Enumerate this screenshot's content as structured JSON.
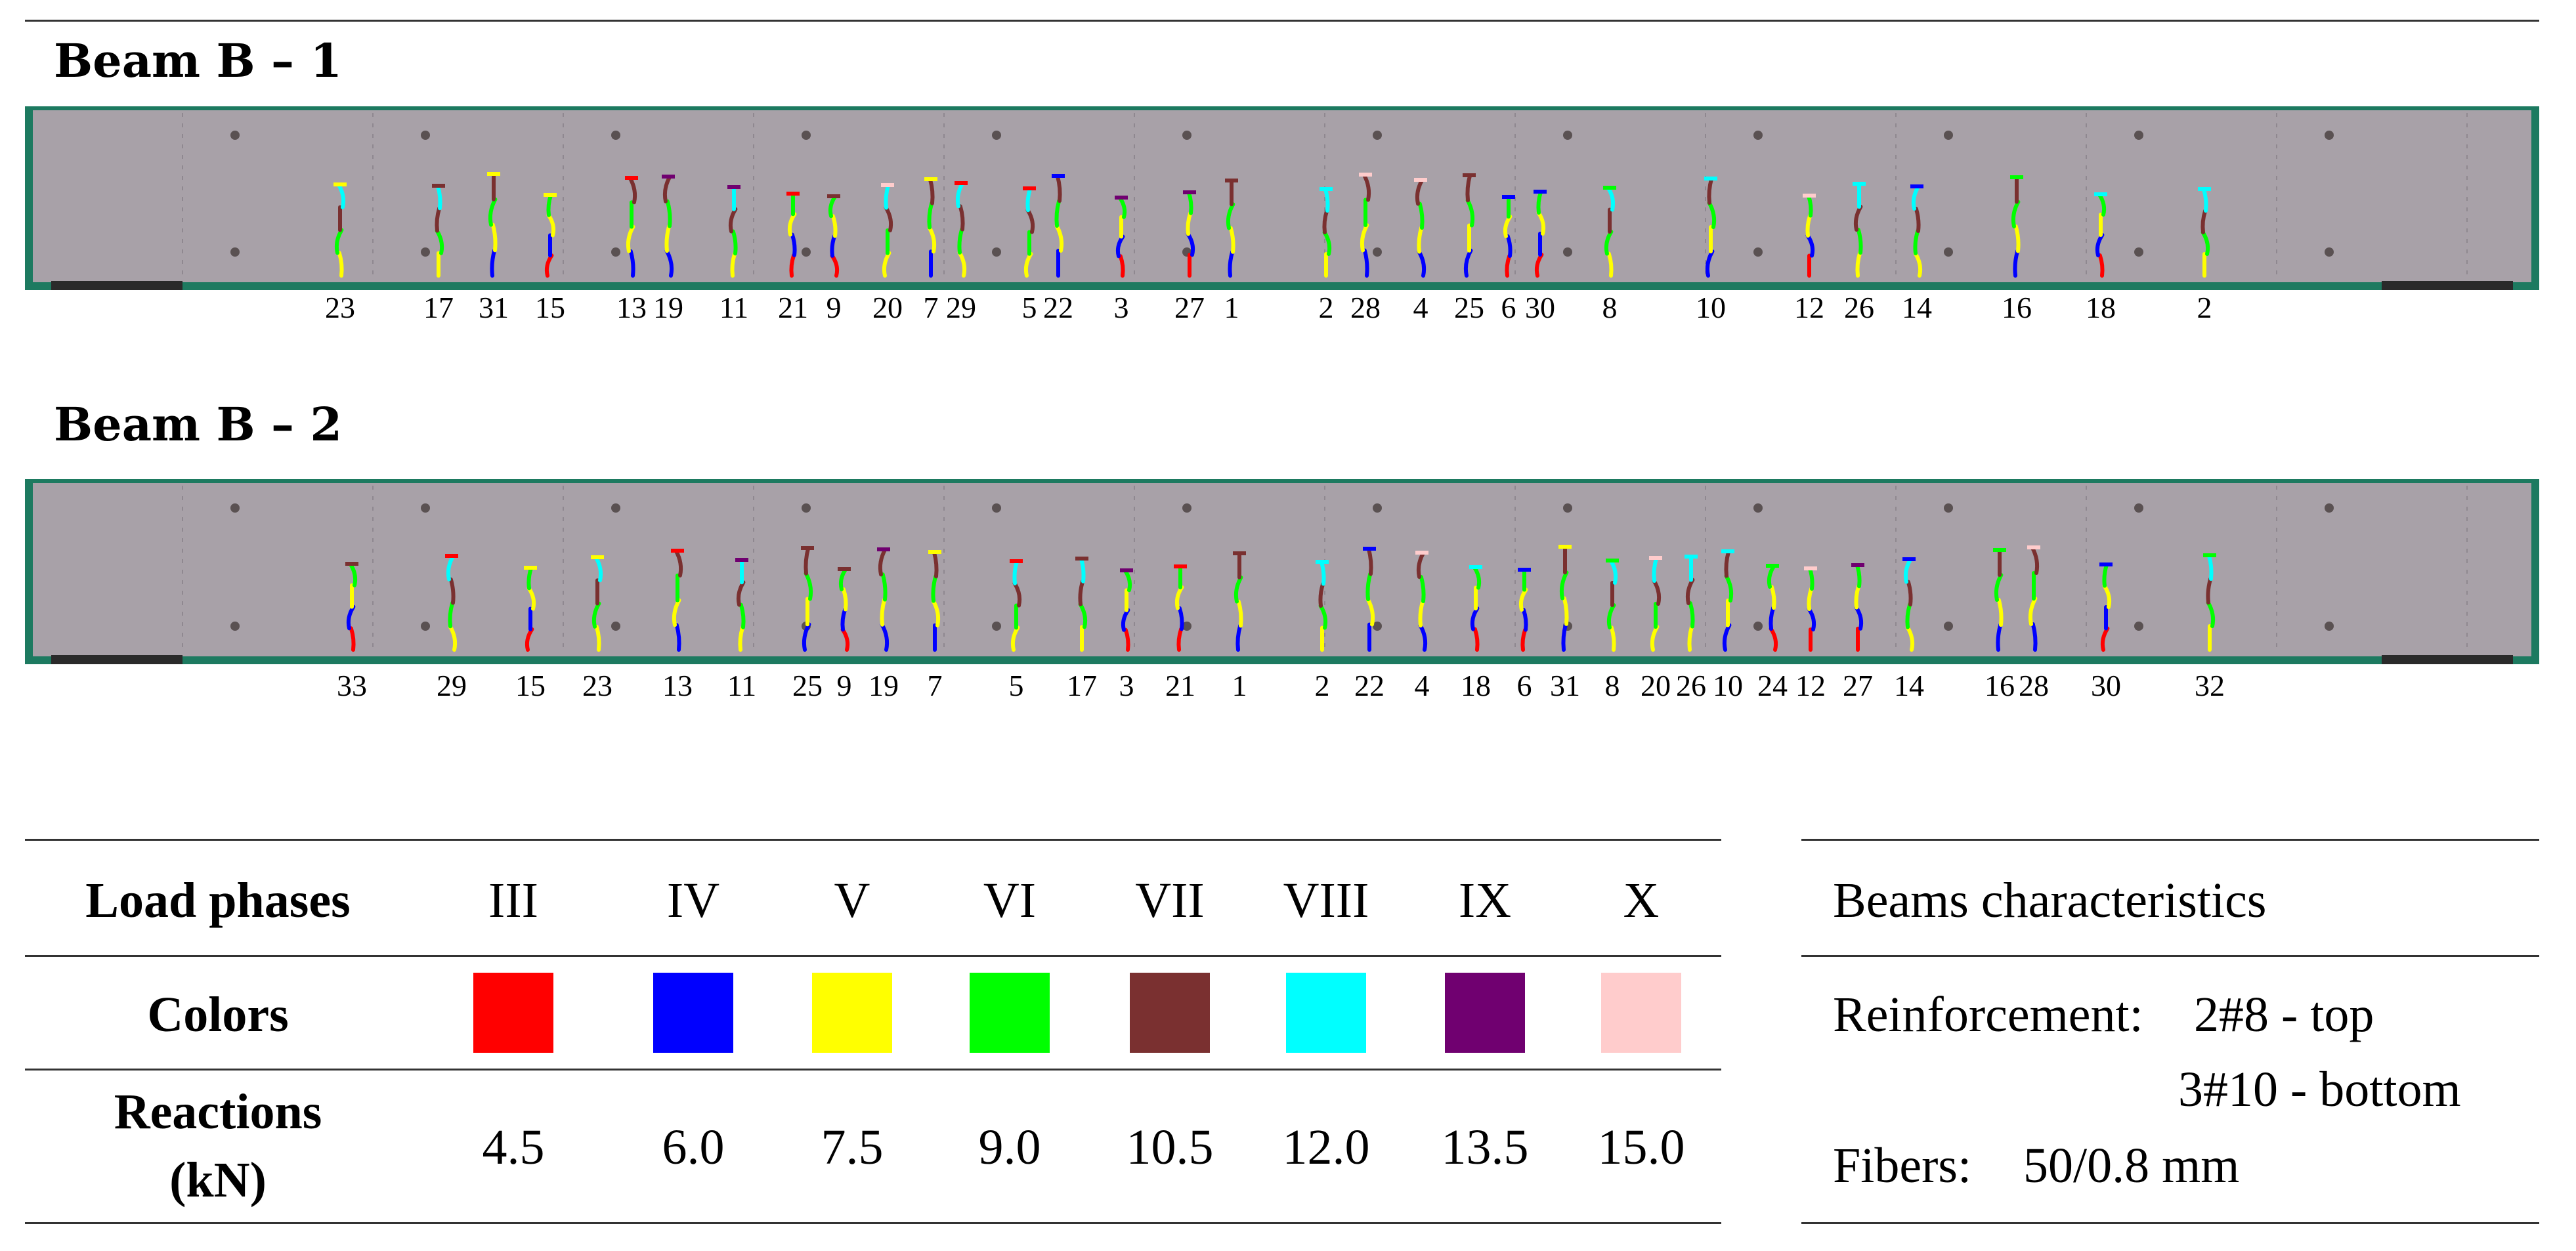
{
  "beams": [
    {
      "title": "Beam B – 1",
      "crack_labels": [
        "23",
        "17",
        "31",
        "15",
        "13",
        "19",
        "11",
        "21",
        "9",
        "20",
        "7",
        "29",
        "5",
        "22",
        "3",
        "27",
        "1",
        "2",
        "28",
        "4",
        "25",
        "6",
        "30",
        "8",
        "10",
        "12",
        "26",
        "14",
        "16",
        "18",
        "2"
      ]
    },
    {
      "title": "Beam B – 2",
      "crack_labels": [
        "33",
        "29",
        "15",
        "23",
        "13",
        "11",
        "25",
        "9",
        "19",
        "7",
        "5",
        "17",
        "3",
        "21",
        "1",
        "2",
        "22",
        "4",
        "18",
        "6",
        "31",
        "8",
        "20",
        "26",
        "10",
        "24",
        "12",
        "27",
        "14",
        "16",
        "28",
        "30",
        "32"
      ]
    }
  ],
  "load_table": {
    "header_label": "Load phases",
    "colors_label": "Colors",
    "reactions_label_line1": "Reactions",
    "reactions_label_line2": "(kN)",
    "phases": [
      {
        "phase": "III",
        "color": "#ff0000",
        "reaction": "4.5"
      },
      {
        "phase": "IV",
        "color": "#0000ff",
        "reaction": "6.0"
      },
      {
        "phase": "V",
        "color": "#ffff00",
        "reaction": "7.5"
      },
      {
        "phase": "VI",
        "color": "#00ff00",
        "reaction": "9.0"
      },
      {
        "phase": "VII",
        "color": "#7a3030",
        "reaction": "10.5"
      },
      {
        "phase": "VIII",
        "color": "#00ffff",
        "reaction": "12.0"
      },
      {
        "phase": "IX",
        "color": "#700070",
        "reaction": "13.5"
      },
      {
        "phase": "X",
        "color": "#ffcccc",
        "reaction": "15.0"
      }
    ]
  },
  "characteristics": {
    "title": "Beams characteristics",
    "reinforcement_label": "Reinforcement:",
    "reinforcement_top": "2#8 - top",
    "reinforcement_bottom": "3#10 - bottom",
    "fibers_label": "Fibers:",
    "fibers_value": "50/0.8 mm"
  },
  "colors": {
    "background_green": "#1d7a60",
    "beam_surface": "#a8a1a8"
  }
}
